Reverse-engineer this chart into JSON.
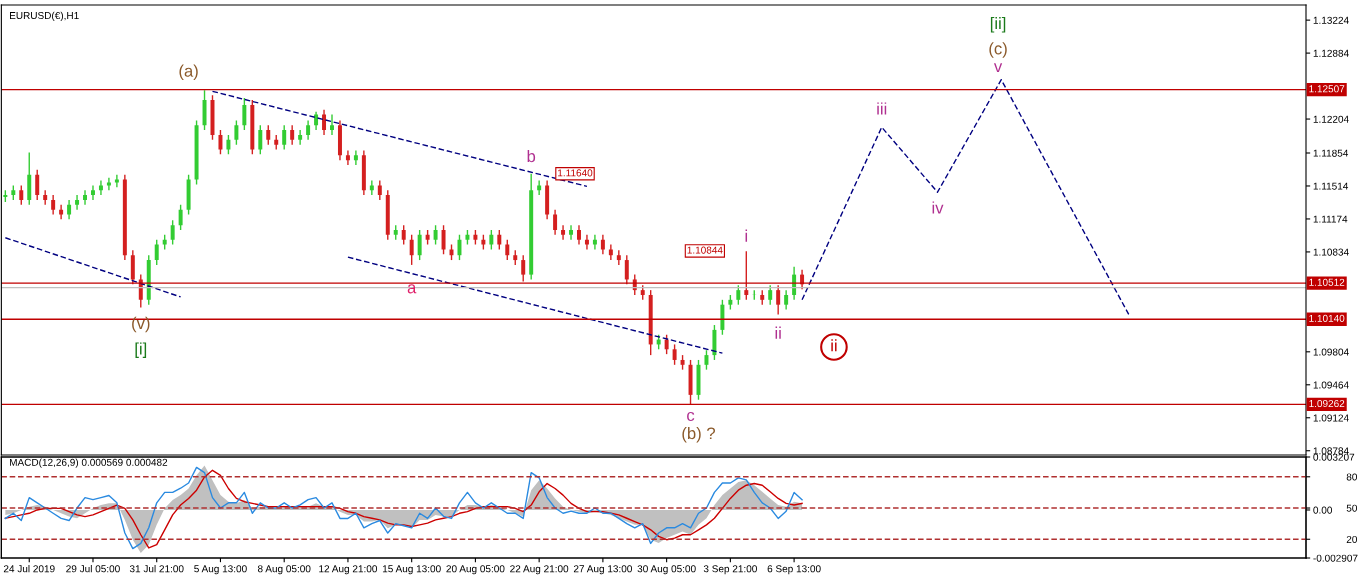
{
  "chart_data": [
    {
      "type": "candlestick",
      "title": "EURUSD(€),H1",
      "tick_labels": "y",
      "categories": [
        null,
        null,
        null,
        null,
        null,
        null,
        null,
        null,
        null,
        null,
        null,
        null,
        null,
        null,
        null,
        null,
        null,
        null,
        null,
        null,
        null,
        null,
        null,
        null,
        null,
        null,
        null,
        null,
        null,
        null,
        null,
        null,
        null,
        null,
        null,
        null,
        null,
        null,
        null,
        null,
        null,
        null,
        null,
        null,
        null,
        null,
        null,
        null,
        null,
        null,
        null,
        null,
        null,
        null,
        null,
        null,
        null,
        null,
        null,
        null,
        null,
        null,
        null,
        null,
        null,
        null,
        null,
        null,
        null,
        null,
        null,
        null,
        null,
        null,
        null,
        null,
        null,
        null,
        null,
        null,
        null,
        null,
        null,
        null,
        null,
        null,
        null,
        null,
        null,
        null,
        null,
        null,
        null,
        null,
        null,
        null,
        null,
        null,
        null,
        null,
        null,
        null,
        null,
        null,
        null,
        null,
        null,
        null,
        null,
        null,
        null,
        null,
        null,
        null,
        null,
        null,
        null,
        null,
        null,
        null,
        null,
        null,
        null,
        null,
        null,
        null,
        null,
        null,
        null,
        null,
        null,
        null,
        null,
        null,
        null,
        null,
        null,
        null,
        null,
        null,
        null,
        null,
        null,
        null,
        null,
        null,
        null,
        null,
        null,
        null,
        null,
        null,
        null,
        null,
        null,
        null,
        null,
        null,
        null,
        null,
        null,
        null,
        null,
        null
      ],
      "ylim": [
        1.0874,
        1.1338
      ],
      "yticks": [
        1.13224,
        1.12884,
        1.12204,
        1.11854,
        1.11514,
        1.11174,
        1.10834,
        1.09804,
        1.09464,
        1.09124,
        1.08784
      ],
      "ohlc": [
        [
          1.114,
          1.1147,
          1.1135,
          1.1142
        ],
        [
          1.1142,
          1.1152,
          1.1137,
          1.1147
        ],
        [
          1.1147,
          1.1152,
          1.1132,
          1.1137
        ],
        [
          1.1137,
          1.1186,
          1.1132,
          1.1163
        ],
        [
          1.1163,
          1.1168,
          1.1137,
          1.1142
        ],
        [
          1.1142,
          1.1147,
          1.1132,
          1.1137
        ],
        [
          1.1137,
          1.1142,
          1.1122,
          1.1127
        ],
        [
          1.1127,
          1.1132,
          1.1117,
          1.1122
        ],
        [
          1.1122,
          1.1137,
          1.1117,
          1.1132
        ],
        [
          1.1132,
          1.1142,
          1.1127,
          1.1137
        ],
        [
          1.1137,
          1.1147,
          1.1132,
          1.1142
        ],
        [
          1.1142,
          1.1152,
          1.1137,
          1.1147
        ],
        [
          1.1147,
          1.1157,
          1.1142,
          1.1152
        ],
        [
          1.1152,
          1.116,
          1.1147,
          1.1155
        ],
        [
          1.1155,
          1.1163,
          1.115,
          1.1158
        ],
        [
          1.1158,
          1.1163,
          1.1075,
          1.108
        ],
        [
          1.108,
          1.1085,
          1.105,
          1.1055
        ],
        [
          1.1055,
          1.106,
          1.1026,
          1.1034
        ],
        [
          1.1034,
          1.108,
          1.1029,
          1.1075
        ],
        [
          1.1075,
          1.1096,
          1.107,
          1.1091
        ],
        [
          1.1091,
          1.1101,
          1.1086,
          1.1096
        ],
        [
          1.1096,
          1.1116,
          1.1091,
          1.1111
        ],
        [
          1.1111,
          1.1132,
          1.1106,
          1.1127
        ],
        [
          1.1127,
          1.1163,
          1.1122,
          1.1158
        ],
        [
          1.1158,
          1.1219,
          1.1153,
          1.1214
        ],
        [
          1.1214,
          1.125,
          1.1209,
          1.124
        ],
        [
          1.124,
          1.1245,
          1.1199,
          1.1204
        ],
        [
          1.1204,
          1.1209,
          1.1184,
          1.1189
        ],
        [
          1.1189,
          1.1204,
          1.1184,
          1.1199
        ],
        [
          1.1199,
          1.1219,
          1.1194,
          1.1214
        ],
        [
          1.1214,
          1.1242,
          1.1209,
          1.1235
        ],
        [
          1.1235,
          1.124,
          1.1184,
          1.1189
        ],
        [
          1.1189,
          1.1214,
          1.1184,
          1.1209
        ],
        [
          1.1209,
          1.1214,
          1.1194,
          1.1199
        ],
        [
          1.1199,
          1.1204,
          1.1189,
          1.1194
        ],
        [
          1.1194,
          1.1214,
          1.1189,
          1.1209
        ],
        [
          1.1209,
          1.1214,
          1.1194,
          1.1199
        ],
        [
          1.1199,
          1.1209,
          1.1194,
          1.1204
        ],
        [
          1.1204,
          1.1219,
          1.1199,
          1.1214
        ],
        [
          1.1214,
          1.1228,
          1.1209,
          1.1225
        ],
        [
          1.1225,
          1.123,
          1.1204,
          1.1209
        ],
        [
          1.1209,
          1.1225,
          1.1204,
          1.1214
        ],
        [
          1.1214,
          1.1219,
          1.1178,
          1.1183
        ],
        [
          1.1183,
          1.1188,
          1.1173,
          1.1178
        ],
        [
          1.1178,
          1.1188,
          1.1173,
          1.1183
        ],
        [
          1.1183,
          1.1188,
          1.1142,
          1.1147
        ],
        [
          1.1147,
          1.1157,
          1.1142,
          1.1152
        ],
        [
          1.1152,
          1.1157,
          1.1137,
          1.1142
        ],
        [
          1.1142,
          1.1147,
          1.1096,
          1.1101
        ],
        [
          1.1101,
          1.1111,
          1.1096,
          1.1106
        ],
        [
          1.1106,
          1.1111,
          1.1091,
          1.1096
        ],
        [
          1.1096,
          1.1101,
          1.107,
          1.108
        ],
        [
          1.108,
          1.1106,
          1.1075,
          1.1101
        ],
        [
          1.1101,
          1.1106,
          1.1091,
          1.1096
        ],
        [
          1.1096,
          1.1111,
          1.1091,
          1.1106
        ],
        [
          1.1106,
          1.1111,
          1.1081,
          1.1086
        ],
        [
          1.1086,
          1.1091,
          1.1075,
          1.108
        ],
        [
          1.108,
          1.1101,
          1.1075,
          1.1096
        ],
        [
          1.1096,
          1.1106,
          1.1091,
          1.1101
        ],
        [
          1.1101,
          1.1106,
          1.1091,
          1.1096
        ],
        [
          1.1096,
          1.1101,
          1.1086,
          1.1091
        ],
        [
          1.1091,
          1.1106,
          1.1086,
          1.1101
        ],
        [
          1.1101,
          1.1106,
          1.1086,
          1.1091
        ],
        [
          1.1091,
          1.1096,
          1.1075,
          1.108
        ],
        [
          1.108,
          1.1085,
          1.107,
          1.1075
        ],
        [
          1.1075,
          1.108,
          1.1053,
          1.106
        ],
        [
          1.106,
          1.1164,
          1.1055,
          1.1147
        ],
        [
          1.1147,
          1.1157,
          1.1142,
          1.1152
        ],
        [
          1.1152,
          1.1157,
          1.1117,
          1.1122
        ],
        [
          1.1122,
          1.1127,
          1.1101,
          1.1106
        ],
        [
          1.1106,
          1.1111,
          1.1096,
          1.1101
        ],
        [
          1.1101,
          1.1111,
          1.1096,
          1.1106
        ],
        [
          1.1106,
          1.1111,
          1.1091,
          1.1096
        ],
        [
          1.1096,
          1.1101,
          1.1086,
          1.1091
        ],
        [
          1.1091,
          1.1101,
          1.1086,
          1.1096
        ],
        [
          1.1096,
          1.1101,
          1.1081,
          1.1086
        ],
        [
          1.1086,
          1.1091,
          1.1075,
          1.108
        ],
        [
          1.108,
          1.1085,
          1.107,
          1.1075
        ],
        [
          1.1075,
          1.108,
          1.105,
          1.1055
        ],
        [
          1.1055,
          1.106,
          1.1039,
          1.1044
        ],
        [
          1.1044,
          1.1049,
          1.1034,
          1.1039
        ],
        [
          1.1039,
          1.1044,
          1.0977,
          1.0988
        ],
        [
          1.0988,
          1.0998,
          1.0983,
          1.0993
        ],
        [
          1.0993,
          1.0998,
          1.0978,
          1.0983
        ],
        [
          1.0983,
          1.0988,
          1.0967,
          1.0972
        ],
        [
          1.0972,
          1.0977,
          1.0962,
          1.0967
        ],
        [
          1.0967,
          1.0972,
          1.0926,
          1.0936
        ],
        [
          1.0936,
          1.0972,
          1.0931,
          1.0967
        ],
        [
          1.0967,
          1.0982,
          1.0962,
          1.0977
        ],
        [
          1.0977,
          1.1008,
          1.0972,
          1.1003
        ],
        [
          1.1003,
          1.1034,
          1.0998,
          1.1029
        ],
        [
          1.1029,
          1.1039,
          1.1024,
          1.1034
        ],
        [
          1.1034,
          1.1049,
          1.1029,
          1.1044
        ],
        [
          1.1044,
          1.1084,
          1.1034,
          1.1039
        ],
        [
          1.1039,
          1.1044,
          1.1034,
          1.1039
        ],
        [
          1.1039,
          1.1044,
          1.1029,
          1.1034
        ],
        [
          1.1034,
          1.1049,
          1.1029,
          1.1044
        ],
        [
          1.1044,
          1.1049,
          1.1019,
          1.1029
        ],
        [
          1.1029,
          1.1044,
          1.1024,
          1.1039
        ],
        [
          1.1039,
          1.1068,
          1.1034,
          1.106
        ],
        [
          1.106,
          1.1065,
          1.1045,
          1.105
        ],
        null,
        null,
        null,
        null,
        null,
        null,
        null,
        null,
        null,
        null,
        null,
        null,
        null,
        null,
        null,
        null,
        null,
        null,
        null,
        null,
        null,
        null,
        null,
        null,
        null,
        null,
        null,
        null,
        null,
        null,
        null,
        null,
        null,
        null,
        null,
        null,
        null,
        null,
        null,
        null,
        null,
        null,
        null,
        null,
        null,
        null,
        null,
        null,
        null,
        null,
        null,
        null,
        null,
        null,
        null,
        null,
        null,
        null,
        null,
        null,
        null,
        null,
        null
      ],
      "series": [
        {
          "type": "line",
          "color": "#000080",
          "line_style": "dashed",
          "values": [
            null,
            null,
            null,
            null,
            null,
            null,
            null,
            null,
            null,
            null,
            null,
            null,
            null,
            null,
            null,
            null,
            null,
            null,
            null,
            null,
            null,
            null,
            null,
            null,
            null,
            null,
            null,
            null,
            null,
            null,
            null,
            null,
            null,
            null,
            null,
            null,
            null,
            null,
            null,
            null,
            null,
            null,
            null,
            null,
            null,
            null,
            null,
            null,
            null,
            null,
            null,
            null,
            null,
            null,
            null,
            null,
            null,
            null,
            null,
            null,
            null,
            null,
            null,
            null,
            null,
            null,
            null,
            null,
            null,
            null,
            null,
            null,
            null,
            null,
            null,
            null,
            null,
            null,
            null,
            null,
            null,
            null,
            null,
            null,
            null,
            null,
            null,
            null,
            null,
            null,
            null,
            null,
            null,
            null,
            null,
            null,
            null,
            null,
            null,
            null,
            1.1034,
            null,
            null,
            null,
            null,
            null,
            null,
            null,
            null,
            null,
            1.1212,
            null,
            null,
            null,
            null,
            null,
            null,
            1.1145,
            null,
            null,
            null,
            null,
            null,
            null,
            null,
            1.1261,
            null,
            null,
            null,
            null,
            null,
            null,
            null,
            null,
            null,
            null,
            null,
            null,
            null,
            null,
            null,
            1.1019,
            null,
            null,
            null,
            null,
            null,
            null,
            null,
            null,
            null,
            null,
            null,
            null,
            null,
            null,
            null,
            null,
            null,
            null,
            null,
            null,
            null,
            null
          ]
        },
        {
          "type": "line",
          "color": "#000080",
          "line_style": "dashed",
          "values": [
            null,
            null,
            null,
            null,
            null,
            null,
            null,
            null,
            null,
            null,
            null,
            null,
            null,
            null,
            null,
            null,
            null,
            null,
            null,
            null,
            null,
            null,
            null,
            null,
            null,
            null,
            1.1249,
            null,
            null,
            null,
            null,
            null,
            null,
            null,
            null,
            null,
            null,
            null,
            null,
            null,
            null,
            null,
            null,
            null,
            null,
            null,
            null,
            null,
            null,
            null,
            null,
            null,
            null,
            null,
            null,
            null,
            null,
            null,
            null,
            null,
            null,
            null,
            null,
            null,
            null,
            null,
            null,
            null,
            null,
            null,
            null,
            null,
            null,
            1.1151,
            null,
            null,
            null,
            null,
            null,
            null,
            null,
            null,
            null,
            null,
            null,
            null,
            null,
            null,
            null,
            null,
            null,
            null,
            null,
            null,
            null,
            null,
            null,
            null,
            null,
            null,
            null,
            null,
            null,
            null,
            null,
            null,
            null,
            null,
            null,
            null,
            null,
            null,
            null,
            null,
            null,
            null,
            null,
            null,
            null,
            null,
            null,
            null,
            null,
            null,
            null,
            null,
            null,
            null,
            null,
            null,
            null,
            null,
            null,
            null,
            null,
            null,
            null,
            null,
            null,
            null,
            null,
            null,
            null,
            null,
            null,
            null,
            null,
            null,
            null,
            null,
            null,
            null,
            null,
            null,
            null,
            null,
            null,
            null,
            null,
            null,
            null,
            null,
            null,
            null
          ]
        },
        {
          "type": "line",
          "color": "#000080",
          "line_style": "dashed",
          "values": [
            1.1098,
            null,
            null,
            null,
            null,
            null,
            null,
            null,
            null,
            null,
            null,
            null,
            null,
            null,
            null,
            null,
            null,
            null,
            null,
            null,
            null,
            null,
            1.1037,
            null,
            null,
            null,
            null,
            null,
            null,
            null,
            null,
            null,
            null,
            null,
            null,
            null,
            null,
            null,
            null,
            null,
            null,
            null,
            null,
            null,
            null,
            null,
            null,
            null,
            null,
            null,
            null,
            null,
            null,
            null,
            null,
            null,
            null,
            null,
            null,
            null,
            null,
            null,
            null,
            null,
            null,
            null,
            null,
            null,
            null,
            null,
            null,
            null,
            null,
            null,
            null,
            null,
            null,
            null,
            null,
            null,
            null,
            null,
            null,
            null,
            null,
            null,
            null,
            null,
            null,
            null,
            null,
            null,
            null,
            null,
            null,
            null,
            null,
            null,
            null,
            null,
            null,
            null,
            null,
            null,
            null,
            null,
            null,
            null,
            null,
            null,
            null,
            null,
            null,
            null,
            null,
            null,
            null,
            null,
            null,
            null,
            null,
            null,
            null,
            null,
            null,
            null,
            null,
            null,
            null,
            null,
            null,
            null,
            null,
            null,
            null,
            null,
            null,
            null,
            null,
            null,
            null,
            null,
            null,
            null,
            null,
            null,
            null,
            null,
            null,
            null,
            null,
            null,
            null,
            null,
            null,
            null,
            null,
            null,
            null,
            null,
            null,
            null,
            null,
            null
          ]
        },
        {
          "type": "line",
          "color": "#000080",
          "line_style": "dashed",
          "values": [
            null,
            null,
            null,
            null,
            null,
            null,
            null,
            null,
            null,
            null,
            null,
            null,
            null,
            null,
            null,
            null,
            null,
            null,
            null,
            null,
            null,
            null,
            null,
            null,
            null,
            null,
            null,
            null,
            null,
            null,
            null,
            null,
            null,
            null,
            null,
            null,
            null,
            null,
            null,
            null,
            null,
            null,
            null,
            1.1078,
            null,
            null,
            null,
            null,
            null,
            null,
            null,
            null,
            null,
            null,
            null,
            null,
            null,
            null,
            null,
            null,
            null,
            null,
            null,
            null,
            null,
            null,
            null,
            null,
            null,
            null,
            null,
            null,
            null,
            null,
            null,
            null,
            null,
            null,
            null,
            null,
            null,
            null,
            null,
            null,
            null,
            null,
            null,
            null,
            null,
            null,
            1.0979,
            null,
            null,
            null,
            null,
            null,
            null,
            null,
            null,
            null,
            null,
            null,
            null,
            null,
            null,
            null,
            null,
            null,
            null,
            null,
            null,
            null,
            null,
            null,
            null,
            null,
            null,
            null,
            null,
            null,
            null,
            null,
            null,
            null,
            null,
            null,
            null,
            null,
            null,
            null,
            null,
            null,
            null,
            null,
            null,
            null,
            null,
            null,
            null,
            null,
            null,
            null,
            null,
            null,
            null,
            null,
            null,
            null,
            null,
            null,
            null,
            null,
            null,
            null,
            null,
            null,
            null,
            null,
            null,
            null,
            null,
            null,
            null,
            null
          ]
        }
      ],
      "ref_lines": [
        {
          "axis": "y",
          "value": 1.12507,
          "label": "1.12507",
          "color": "#c00000"
        },
        {
          "axis": "y",
          "value": 1.10512,
          "label": "1.10512",
          "color": "#c00000"
        },
        {
          "axis": "y",
          "value": 1.10466,
          "color": "#c0c0c0"
        },
        {
          "axis": "y",
          "value": 1.1014,
          "label": "1.10140",
          "color": "#c00000"
        },
        {
          "axis": "y",
          "value": 1.09262,
          "label": "1.09262",
          "color": "#c00000"
        }
      ],
      "annotations": [
        {
          "text": "(a)",
          "y": 1.125
        },
        {
          "text": "b",
          "y": 1.1164
        },
        {
          "text": "1.11640",
          "y": 1.1164
        },
        {
          "text": "a",
          "y": 1.107
        },
        {
          "text": "(v)",
          "y": 1.1026
        },
        "[i]",
        {
          "text": "1.10844",
          "y": 1.10844
        },
        {
          "text": "i",
          "y": 1.1084
        },
        {
          "text": "ii",
          "y": 1.1019
        },
        {
          "text": "c",
          "y": 1.0926
        },
        "(b) ?",
        "ii",
        {
          "text": "iii",
          "y": 1.1212
        },
        {
          "text": "iv",
          "y": 1.1145
        },
        {
          "text": "v",
          "y": 1.1261
        },
        "(c)",
        "[ii]"
      ]
    },
    {
      "type": "line",
      "title": "MACD(12,26,9) 0.000569 0.000482",
      "categories": [
        null,
        null,
        null,
        "24 Jul 2019",
        null,
        null,
        null,
        null,
        null,
        null,
        null,
        "29 Jul 05:00",
        null,
        null,
        null,
        null,
        null,
        null,
        null,
        "31 Jul 21:00",
        null,
        null,
        null,
        null,
        null,
        null,
        null,
        "5 Aug 13:00",
        null,
        null,
        null,
        null,
        null,
        null,
        null,
        "8 Aug 05:00",
        null,
        null,
        null,
        null,
        null,
        null,
        null,
        "12 Aug 21:00",
        null,
        null,
        null,
        null,
        null,
        null,
        null,
        "15 Aug 13:00",
        null,
        null,
        null,
        null,
        null,
        null,
        null,
        "20 Aug 05:00",
        null,
        null,
        null,
        null,
        null,
        null,
        null,
        "22 Aug 21:00",
        null,
        null,
        null,
        null,
        null,
        null,
        null,
        "27 Aug 13:00",
        null,
        null,
        null,
        null,
        null,
        null,
        null,
        "30 Aug 05:00",
        null,
        null,
        null,
        null,
        null,
        null,
        null,
        "3 Sep 21:00",
        null,
        null,
        null,
        null,
        null,
        null,
        null,
        "6 Sep 13:00",
        null,
        null,
        null,
        null,
        null,
        null,
        null,
        null,
        null,
        null,
        null,
        null,
        null,
        null,
        null,
        null,
        null,
        null,
        null,
        null,
        null,
        null,
        null,
        null,
        null,
        null,
        null,
        null,
        null,
        null,
        null,
        null,
        null,
        null,
        null,
        null,
        null,
        null,
        null,
        null,
        null,
        null,
        null,
        null,
        null,
        null,
        null,
        null,
        null,
        null,
        null,
        null,
        null,
        null,
        null,
        null,
        null,
        null,
        null,
        null,
        null,
        null,
        null,
        null
      ],
      "ylim": [
        -0.002907,
        0.003207
      ],
      "yticks": [
        0.003207,
        {
          "value": 0,
          "label": "0.00"
        },
        -0.002907
      ],
      "y2lim": [
        2,
        99
      ],
      "y2ticks": [
        80,
        50,
        20
      ],
      "series": [
        {
          "type": "area",
          "color": "#c0c0c0",
          "values": [
            -0.0003,
            -0.0002,
            0,
            0.0002,
            0.0003,
            0.0002,
            0,
            -0.0002,
            -0.0004,
            -0.0005,
            -0.0002,
            0.0001,
            0.0003,
            0.0004,
            0.0004,
            -0.0006,
            -0.0018,
            -0.0026,
            -0.0021,
            -0.0009,
            0.0001,
            0.0006,
            0.0009,
            0.0013,
            0.0021,
            0.0027,
            0.0018,
            0.0009,
            0.0005,
            0.0004,
            0.0006,
            0.0001,
            0.0002,
            0.0002,
            0.0001,
            0.0002,
            0.0001,
            0.0002,
            0.0002,
            0.0004,
            0.0002,
            0.0002,
            -0.0001,
            -0.0003,
            -0.0003,
            -0.0007,
            -0.0007,
            -0.0006,
            -0.0011,
            -0.0009,
            -0.0009,
            -0.0011,
            -0.0006,
            -0.0006,
            -0.0003,
            -0.0004,
            -0.0004,
            0,
            0.0003,
            0.0003,
            0.0002,
            0.0003,
            0.0002,
            0,
            -0.0002,
            -0.0004,
            0.0012,
            0.0018,
            0.0013,
            0.0007,
            0.0002,
            0,
            -0.0001,
            -0.0002,
            -0.0001,
            -0.0002,
            -0.0003,
            -0.0005,
            -0.0007,
            -0.0009,
            -0.0009,
            -0.0018,
            -0.002,
            -0.0017,
            -0.0015,
            -0.0013,
            -0.0015,
            -0.0009,
            -0.0005,
            0.0003,
            0.0009,
            0.0013,
            0.0017,
            0.0018,
            0.0015,
            0.0011,
            0.0007,
            0.0003,
            0.0002,
            0.0005,
            0.0004,
            null,
            null,
            null,
            null,
            null,
            null,
            null,
            null,
            null,
            null,
            null,
            null,
            null,
            null,
            null,
            null,
            null,
            null,
            null,
            null,
            null,
            null,
            null,
            null,
            null,
            null,
            null,
            null,
            null,
            null,
            null,
            null,
            null,
            null,
            null,
            null,
            null,
            null,
            null,
            null,
            null,
            null,
            null,
            null,
            null,
            null,
            null,
            null,
            null,
            null,
            null,
            null,
            null,
            null,
            null,
            null,
            null,
            null,
            null,
            null,
            null,
            null,
            null
          ]
        },
        {
          "type": "line",
          "color": "#cc0000",
          "values": [
            -0.0005,
            -0.0004,
            -0.0003,
            -0.0002,
            0,
            0.0001,
            0.0001,
            0.0001,
            -0.0001,
            -0.0003,
            -0.0004,
            -0.0003,
            -0.0001,
            0.0001,
            0.0003,
            0.0001,
            -0.0006,
            -0.0015,
            -0.0023,
            -0.0021,
            -0.0012,
            -0.0003,
            0.0003,
            0.0007,
            0.0012,
            0.002,
            0.0024,
            0.0021,
            0.0013,
            0.0007,
            0.0005,
            0.0004,
            0.0003,
            0.0002,
            0.0002,
            0.0002,
            0.0002,
            0.0002,
            0.0002,
            0.0002,
            0.0002,
            0.0002,
            0.0001,
            -0.0001,
            -0.0002,
            -0.0004,
            -0.0005,
            -0.0006,
            -0.0008,
            -0.0009,
            -0.0009,
            -0.001,
            -0.0009,
            -0.0008,
            -0.0006,
            -0.0005,
            -0.0004,
            -0.0002,
            -0.0001,
            0.0001,
            0.0002,
            0.0002,
            0.0002,
            0.0002,
            0.0001,
            -0.0001,
            0.0003,
            0.0011,
            0.0016,
            0.0013,
            0.0009,
            0.0004,
            0.0001,
            -0.0001,
            -0.0001,
            -0.0001,
            -0.0002,
            -0.0003,
            -0.0005,
            -0.0007,
            -0.0009,
            -0.0012,
            -0.0016,
            -0.0018,
            -0.0017,
            -0.0015,
            -0.0015,
            -0.0012,
            -0.0009,
            -0.0005,
            0.0001,
            0.0007,
            0.0012,
            0.0015,
            0.0016,
            0.0015,
            0.0011,
            0.0007,
            0.0004,
            0.0003,
            0.0004,
            null,
            null,
            null,
            null,
            null,
            null,
            null,
            null,
            null,
            null,
            null,
            null,
            null,
            null,
            null,
            null,
            null,
            null,
            null,
            null,
            null,
            null,
            null,
            null,
            null,
            null,
            null,
            null,
            null,
            null,
            null,
            null,
            null,
            null,
            null,
            null,
            null,
            null,
            null,
            null,
            null,
            null,
            null,
            null,
            null,
            null,
            null,
            null,
            null,
            null,
            null,
            null,
            null,
            null,
            null,
            null,
            null,
            null,
            null,
            null,
            null,
            null,
            null
          ]
        },
        {
          "type": "line",
          "color": "#2a8ae0",
          "axis": "y2",
          "values": [
            40,
            45,
            38,
            60,
            55,
            50,
            45,
            40,
            38,
            50,
            60,
            58,
            60,
            62,
            55,
            26,
            11,
            16,
            31,
            55,
            65,
            65,
            69,
            74,
            89,
            84,
            60,
            50,
            55,
            55,
            65,
            45,
            55,
            50,
            50,
            55,
            50,
            53,
            58,
            60,
            50,
            55,
            40,
            40,
            45,
            31,
            35,
            38,
            26,
            35,
            33,
            31,
            45,
            40,
            50,
            42,
            40,
            55,
            65,
            55,
            50,
            55,
            50,
            45,
            45,
            40,
            84,
            79,
            60,
            50,
            45,
            47,
            45,
            45,
            50,
            45,
            45,
            40,
            35,
            31,
            35,
            16,
            26,
            31,
            31,
            35,
            31,
            45,
            50,
            65,
            74,
            74,
            79,
            77,
            65,
            55,
            50,
            40,
            47,
            65,
            58,
            null,
            null,
            null,
            null,
            null,
            null,
            null,
            null,
            null,
            null,
            null,
            null,
            null,
            null,
            null,
            null,
            null,
            null,
            null,
            null,
            null,
            null,
            null,
            null,
            null,
            null,
            null,
            null,
            null,
            null,
            null,
            null,
            null,
            null,
            null,
            null,
            null,
            null,
            null,
            null,
            null,
            null,
            null,
            null,
            null,
            null,
            null,
            null,
            null,
            null,
            null,
            null,
            null,
            null,
            null,
            null,
            null,
            null,
            null,
            null,
            null,
            null,
            null
          ]
        }
      ],
      "ref_lines": [
        {
          "axis": "y2",
          "value": 80,
          "color": "#b03030",
          "line_style": "dashed"
        },
        {
          "axis": "y2",
          "value": 50,
          "color": "#b03030",
          "line_style": "dashed"
        },
        {
          "axis": "y2",
          "value": 20,
          "color": "#b03030",
          "line_style": "dashed"
        }
      ]
    }
  ]
}
